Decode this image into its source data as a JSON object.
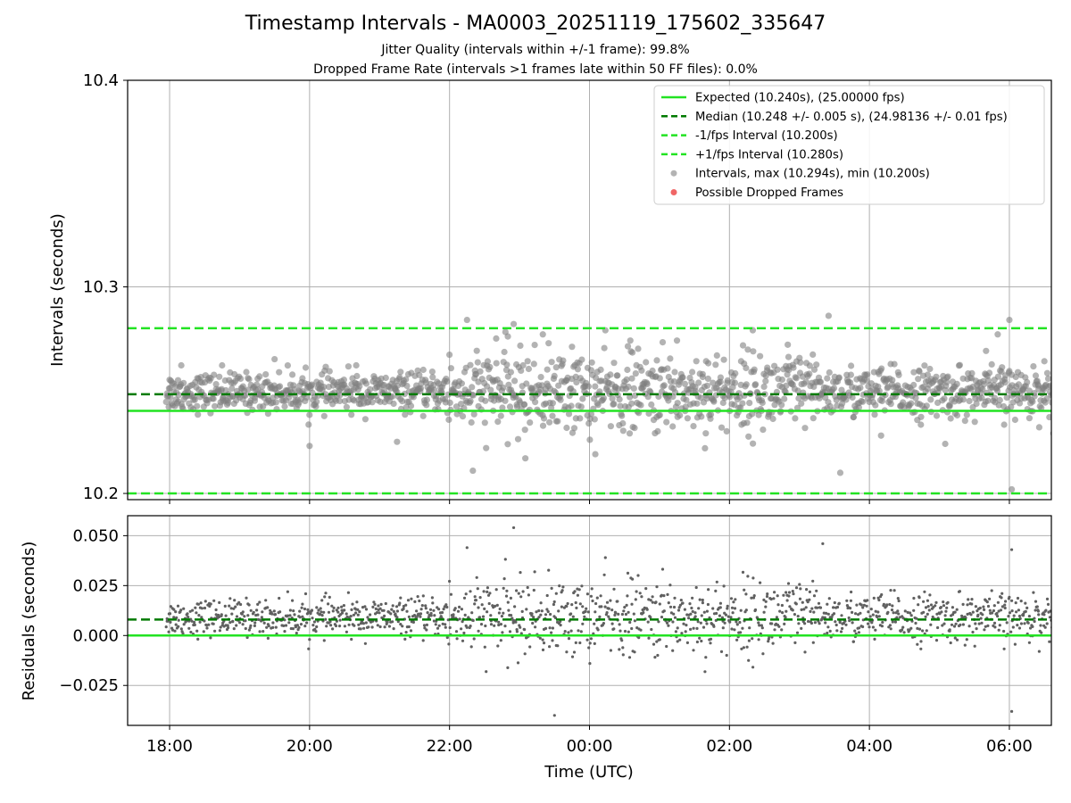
{
  "title": "Timestamp Intervals - MA0003_20251119_175602_335647",
  "subtitle_1": "Jitter Quality (intervals within +/-1 frame): 99.8%",
  "subtitle_2": "Dropped Frame Rate (intervals >1 frames late within 50 FF files): 0.0%",
  "colors": {
    "expected": "#22e322",
    "median": "#007a00",
    "bound": "#22e322",
    "interval_points": "#808080",
    "dropped": "#ee5555",
    "grid": "#b0b0b0"
  },
  "chart_data": [
    {
      "type": "scatter",
      "xlabel": "",
      "ylabel": "Intervals (seconds)",
      "ylim": [
        10.197,
        10.4
      ],
      "yticks": [
        10.2,
        10.3,
        10.4
      ],
      "ytick_labels": [
        "10.2",
        "10.3",
        "10.4"
      ],
      "xlim_hours": [
        17.4,
        30.6
      ],
      "grid": true,
      "legend_position": "top-right",
      "legend": [
        {
          "label": "Expected (10.240s), (25.00000 fps)",
          "style": "solid-line"
        },
        {
          "label": "Median (10.248 +/- 0.005 s), (24.98136 +/- 0.01 fps)",
          "style": "dashed-line-dark"
        },
        {
          "label": "-1/fps Interval (10.200s)",
          "style": "dashed-line"
        },
        {
          "label": "+1/fps Interval (10.280s)",
          "style": "dashed-line"
        },
        {
          "label": "Intervals, max (10.294s), min (10.200s)",
          "style": "grey-dot"
        },
        {
          "label": "Possible Dropped Frames",
          "style": "red-dot"
        }
      ],
      "reference_lines": {
        "expected": 10.24,
        "median": 10.248,
        "lower": 10.2,
        "upper": 10.28
      },
      "series": [
        {
          "name": "Intervals, max (10.294s), min (10.200s)",
          "note_outliers_time_utc": [
            "18:00",
            "18:10",
            "18:45",
            "19:30",
            "20:00",
            "20:40",
            "21:15",
            "22:15",
            "22:20",
            "22:40",
            "22:50",
            "22:55",
            "23:05",
            "23:20",
            "23:45",
            "00:05",
            "00:35",
            "01:15",
            "01:40",
            "02:10",
            "02:20",
            "02:50",
            "03:25",
            "03:35",
            "04:10",
            "05:05",
            "05:40",
            "05:50",
            "06:00",
            "06:02",
            "06:30"
          ],
          "note_outliers_y": [
            10.255,
            10.262,
            10.262,
            10.265,
            10.223,
            10.262,
            10.225,
            10.284,
            10.211,
            10.275,
            10.276,
            10.282,
            10.217,
            10.277,
            10.271,
            10.219,
            10.274,
            10.274,
            10.264,
            10.264,
            10.279,
            10.272,
            10.286,
            10.21,
            10.228,
            10.224,
            10.269,
            10.277,
            10.284,
            10.202,
            10.264
          ]
        }
      ],
      "typical_range": [
        10.235,
        10.262
      ],
      "sample_interval_s": 10.248
    },
    {
      "type": "scatter",
      "xlabel": "Time (UTC)",
      "ylabel": "Residuals (seconds)",
      "ylim": [
        -0.045,
        0.06
      ],
      "yticks": [
        -0.025,
        0.0,
        0.025,
        0.05
      ],
      "ytick_labels": [
        "−0.025",
        "0.000",
        "0.025",
        "0.050"
      ],
      "xlim_hours": [
        17.4,
        30.6
      ],
      "xticks_hours": [
        18,
        20,
        22,
        24,
        26,
        28,
        30
      ],
      "xtick_labels": [
        "18:00",
        "20:00",
        "22:00",
        "00:00",
        "02:00",
        "04:00",
        "06:00"
      ],
      "grid": true,
      "reference_lines": {
        "zero": 0.0,
        "median_residual": 0.008
      },
      "typical_range": [
        -0.005,
        0.022
      ],
      "outliers_time_utc": [
        "22:55",
        "22:15",
        "23:30",
        "03:20",
        "06:02",
        "06:02"
      ],
      "outliers_y": [
        0.054,
        0.044,
        -0.04,
        0.046,
        0.043,
        -0.038
      ]
    }
  ]
}
